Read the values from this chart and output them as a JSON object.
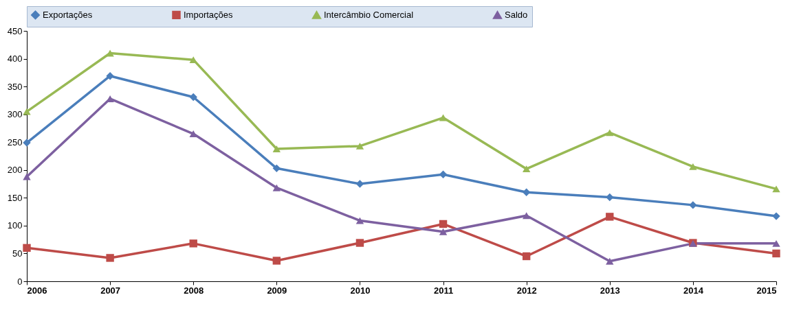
{
  "chart_data": {
    "type": "line",
    "x": [
      2006,
      2007,
      2008,
      2009,
      2010,
      2011,
      2012,
      2013,
      2014,
      2015
    ],
    "xlim": [
      2006,
      2015
    ],
    "xticks": [
      2006,
      2007,
      2008,
      2009,
      2010,
      2011,
      2012,
      2013,
      2014,
      2015
    ],
    "ylim": [
      0,
      450
    ],
    "yticks": [
      0,
      50,
      100,
      150,
      200,
      250,
      300,
      350,
      400,
      450
    ],
    "grid": false,
    "legend": "top",
    "line_style": "solid",
    "series": [
      {
        "name": "Exportações",
        "color": "#4a7ebb",
        "marker": "diamond",
        "values": [
          249,
          369,
          331,
          203,
          175,
          192,
          160,
          151,
          137,
          117
        ]
      },
      {
        "name": "Importações",
        "color": "#be4b48",
        "marker": "square",
        "values": [
          60,
          42,
          68,
          37,
          69,
          103,
          45,
          116,
          69,
          50
        ]
      },
      {
        "name": "Intercâmbio Comercial",
        "color": "#98b954",
        "marker": "triangle",
        "values": [
          305,
          410,
          398,
          238,
          243,
          294,
          202,
          267,
          206,
          166
        ]
      },
      {
        "name": "Saldo",
        "color": "#7d60a0",
        "marker": "triangle",
        "values": [
          188,
          328,
          265,
          168,
          109,
          89,
          118,
          36,
          68,
          68
        ]
      }
    ]
  }
}
